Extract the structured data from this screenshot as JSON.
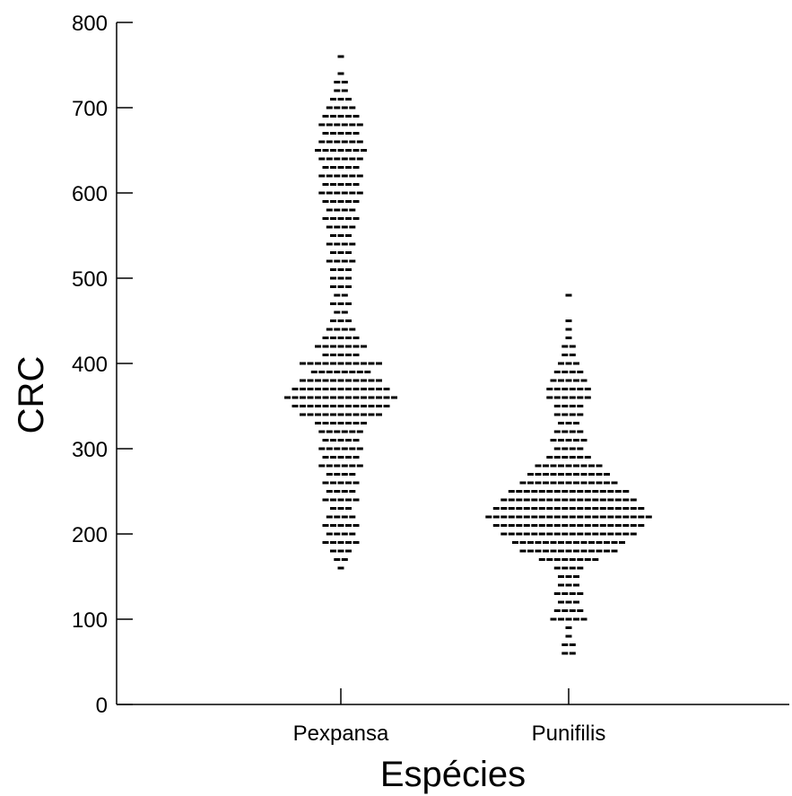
{
  "chart_data": {
    "type": "scatter",
    "style": "beeswarm",
    "xlabel": "Espécies",
    "ylabel": "CRC",
    "ylim": [
      0,
      800
    ],
    "yticks": [
      0,
      100,
      200,
      300,
      400,
      500,
      600,
      700,
      800
    ],
    "categories": [
      "Pexpansa",
      "Punifilis"
    ],
    "grid": false,
    "legend": "none",
    "marker_color": "#000000",
    "series": [
      {
        "category": "Pexpansa",
        "bins": [
          [
            160,
            1
          ],
          [
            170,
            2
          ],
          [
            180,
            3
          ],
          [
            190,
            5
          ],
          [
            200,
            4
          ],
          [
            210,
            5
          ],
          [
            220,
            4
          ],
          [
            230,
            3
          ],
          [
            240,
            5
          ],
          [
            250,
            4
          ],
          [
            260,
            5
          ],
          [
            270,
            4
          ],
          [
            280,
            6
          ],
          [
            290,
            5
          ],
          [
            300,
            6
          ],
          [
            310,
            5
          ],
          [
            320,
            6
          ],
          [
            330,
            7
          ],
          [
            340,
            11
          ],
          [
            350,
            13
          ],
          [
            360,
            15
          ],
          [
            370,
            13
          ],
          [
            380,
            11
          ],
          [
            390,
            8
          ],
          [
            400,
            11
          ],
          [
            410,
            5
          ],
          [
            420,
            7
          ],
          [
            430,
            5
          ],
          [
            440,
            4
          ],
          [
            450,
            3
          ],
          [
            460,
            2
          ],
          [
            470,
            3
          ],
          [
            480,
            2
          ],
          [
            490,
            3
          ],
          [
            500,
            3
          ],
          [
            510,
            3
          ],
          [
            520,
            4
          ],
          [
            530,
            3
          ],
          [
            540,
            4
          ],
          [
            550,
            3
          ],
          [
            560,
            4
          ],
          [
            570,
            5
          ],
          [
            580,
            4
          ],
          [
            590,
            5
          ],
          [
            600,
            6
          ],
          [
            610,
            5
          ],
          [
            620,
            6
          ],
          [
            630,
            5
          ],
          [
            640,
            6
          ],
          [
            650,
            7
          ],
          [
            660,
            6
          ],
          [
            670,
            5
          ],
          [
            680,
            6
          ],
          [
            690,
            5
          ],
          [
            700,
            4
          ],
          [
            710,
            3
          ],
          [
            720,
            2
          ],
          [
            730,
            2
          ],
          [
            740,
            1
          ],
          [
            760,
            1
          ]
        ]
      },
      {
        "category": "Punifilis",
        "bins": [
          [
            60,
            2
          ],
          [
            70,
            2
          ],
          [
            80,
            1
          ],
          [
            90,
            1
          ],
          [
            100,
            5
          ],
          [
            110,
            4
          ],
          [
            120,
            3
          ],
          [
            130,
            4
          ],
          [
            140,
            3
          ],
          [
            150,
            3
          ],
          [
            160,
            4
          ],
          [
            170,
            8
          ],
          [
            180,
            13
          ],
          [
            190,
            15
          ],
          [
            200,
            18
          ],
          [
            210,
            20
          ],
          [
            220,
            22
          ],
          [
            230,
            20
          ],
          [
            240,
            18
          ],
          [
            250,
            16
          ],
          [
            260,
            13
          ],
          [
            270,
            11
          ],
          [
            280,
            9
          ],
          [
            290,
            6
          ],
          [
            300,
            4
          ],
          [
            310,
            5
          ],
          [
            320,
            4
          ],
          [
            330,
            3
          ],
          [
            340,
            4
          ],
          [
            350,
            4
          ],
          [
            360,
            6
          ],
          [
            370,
            6
          ],
          [
            380,
            5
          ],
          [
            390,
            4
          ],
          [
            400,
            3
          ],
          [
            410,
            2
          ],
          [
            420,
            2
          ],
          [
            430,
            1
          ],
          [
            440,
            1
          ],
          [
            450,
            1
          ],
          [
            480,
            1
          ]
        ]
      }
    ]
  }
}
